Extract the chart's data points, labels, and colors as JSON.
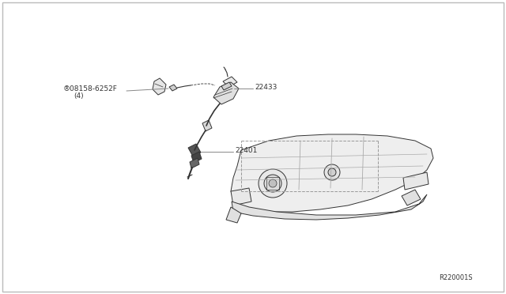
{
  "bg_color": "#ffffff",
  "border_color": "#aaaaaa",
  "lc": "#333333",
  "gray": "#888888",
  "light_gray": "#cccccc",
  "label_08158_line1": "®08158-6252F",
  "label_08158_line2": "(4)",
  "label_22433": "22433",
  "label_22401": "22401",
  "ref_code": "R220001S",
  "fs": 6.5
}
